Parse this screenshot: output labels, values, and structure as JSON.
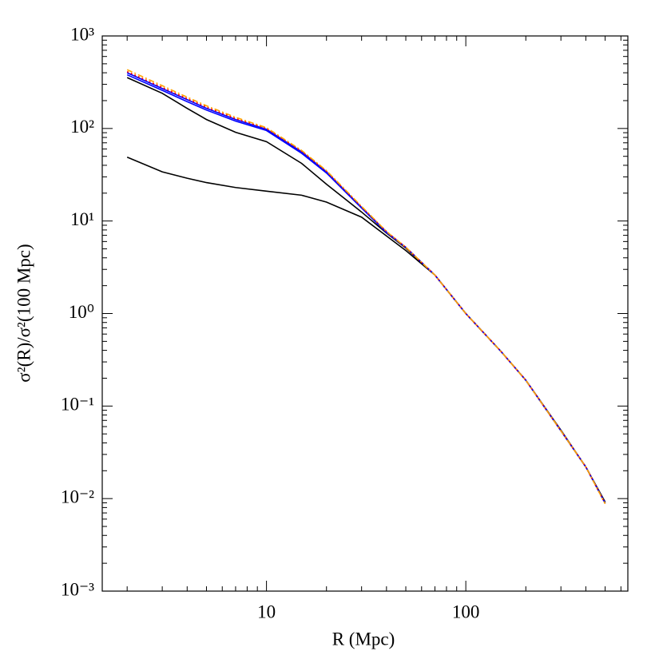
{
  "chart_data": {
    "type": "line",
    "xlabel": "R (Mpc)",
    "ylabel": "σ²(R)/σ²(100 Mpc)",
    "xscale": "log",
    "yscale": "log",
    "xlim": [
      1.5,
      650
    ],
    "ylim": [
      0.001,
      1000
    ],
    "xticks": [
      10,
      100
    ],
    "yticks": [
      {
        "value": 0.001,
        "label": "10⁻³"
      },
      {
        "value": 0.01,
        "label": "10⁻²"
      },
      {
        "value": 0.1,
        "label": "10⁻¹"
      },
      {
        "value": 1,
        "label": "10⁰"
      },
      {
        "value": 10,
        "label": "10¹"
      },
      {
        "value": 100,
        "label": "10²"
      },
      {
        "value": 1000,
        "label": "10³"
      }
    ],
    "x": [
      2,
      3,
      4,
      5,
      7,
      10,
      15,
      20,
      30,
      40,
      50,
      70,
      100,
      150,
      200,
      300,
      400,
      500
    ],
    "series": [
      {
        "color": "#000000",
        "style": "solid",
        "values": [
          49,
          34,
          29,
          26,
          23,
          21,
          19,
          16,
          11,
          6.9,
          4.8,
          2.6,
          1,
          0.39,
          0.19,
          0.055,
          0.022,
          0.0092
        ]
      },
      {
        "color": "#000000",
        "style": "solid",
        "values": [
          355,
          240,
          165,
          125,
          91,
          72,
          42,
          25,
          12.5,
          7.4,
          5.1,
          2.6,
          1,
          0.39,
          0.19,
          0.054,
          0.022,
          0.009
        ]
      },
      {
        "color": "#0000ff",
        "style": "solid",
        "values": [
          380,
          258,
          195,
          158,
          120,
          95,
          54,
          33,
          13.8,
          7.5,
          5.2,
          2.6,
          1,
          0.39,
          0.19,
          0.054,
          0.022,
          0.0089
        ]
      },
      {
        "color": "#0000ff",
        "style": "solid",
        "values": [
          400,
          270,
          205,
          165,
          125,
          98,
          56,
          34,
          14,
          7.6,
          5.2,
          2.6,
          1,
          0.39,
          0.19,
          0.054,
          0.022,
          0.0089
        ]
      },
      {
        "color": "#ff0000",
        "style": "dotted",
        "values": [
          412,
          278,
          210,
          170,
          128,
          100,
          57,
          34.5,
          14.2,
          7.7,
          5.2,
          2.6,
          1,
          0.39,
          0.19,
          0.054,
          0.022,
          0.0088
        ]
      },
      {
        "color": "#ffa500",
        "style": "dashdot",
        "values": [
          432,
          290,
          218,
          176,
          132,
          102,
          58,
          35,
          14.4,
          7.7,
          5.2,
          2.6,
          1,
          0.39,
          0.19,
          0.054,
          0.022,
          0.0088
        ]
      }
    ]
  }
}
